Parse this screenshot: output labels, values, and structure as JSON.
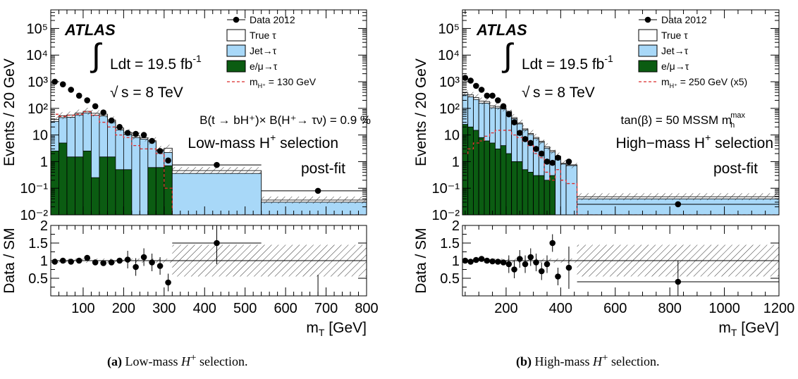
{
  "style": {
    "jet_color": "#a8d8f8",
    "lep_color": "#0b5c12",
    "signal_color": "#d92b2b",
    "data_color": "#000000"
  },
  "chart_data": [
    {
      "type": "histogram",
      "panel": "a",
      "caption_label": "(a)",
      "caption_text": "Low-mass",
      "caption_particle": "H",
      "caption_sup": "+",
      "caption_tail": "selection.",
      "experiment": "ATLAS",
      "lumi_label": "Ldt = 19.5 fb",
      "lumi_sup": "-1",
      "energy_label": "s = 8 TeV",
      "br_label": "B(t → bH⁺)× B(H⁺→ τν) = 0.9 %",
      "selection_label": "Low-mass H",
      "selection_sup": "+",
      "selection_tail": "selection",
      "fit_label": "post-fit",
      "ylabel": "Events / 20 GeV",
      "ratio_ylabel": "Data / SM",
      "xlabel": "m",
      "xlabel_sub": "T",
      "xlabel_unit": "[GeV]",
      "xlim": [
        20,
        800
      ],
      "ylim_log": [
        0.01,
        500000
      ],
      "ratio_ylim": [
        0,
        2
      ],
      "x_ticks": [
        "100",
        "200",
        "300",
        "400",
        "500",
        "600",
        "700",
        "800"
      ],
      "y_ticks": [
        "10⁻²",
        "10⁻¹",
        "1",
        "10",
        "10²",
        "10³",
        "10⁴",
        "10⁵"
      ],
      "ratio_ticks": [
        "0.5",
        "1",
        "1.5",
        "2"
      ],
      "legend": [
        {
          "kind": "data",
          "label": "Data 2012"
        },
        {
          "kind": "true",
          "label": "True τ"
        },
        {
          "kind": "jet",
          "label": "Jet→τ"
        },
        {
          "kind": "lep",
          "label": "e/μ→τ"
        },
        {
          "kind": "signal",
          "label": "m",
          "sub": "H⁺",
          "tail": " = 130 GeV"
        }
      ],
      "bin_edges": [
        20,
        40,
        60,
        80,
        100,
        120,
        140,
        160,
        180,
        200,
        220,
        240,
        260,
        280,
        300,
        320,
        540,
        800
      ],
      "series": [
        {
          "name": "e/μ→τ",
          "values": [
            2.5,
            5,
            1.5,
            1.5,
            2.5,
            0.25,
            1.5,
            1.5,
            0.5,
            0.5,
            0.01,
            0.01,
            0.6,
            0.6,
            0.7,
            0.01,
            0.01
          ]
        },
        {
          "name": "Jet→τ",
          "values": [
            30,
            40,
            45,
            55,
            65,
            55,
            50,
            30,
            15,
            10,
            8,
            7,
            5,
            2,
            1.5,
            0.35,
            0.02
          ]
        },
        {
          "name": "True τ",
          "values": [
            6,
            8,
            10,
            10,
            10,
            10,
            9,
            5,
            3,
            2,
            1.3,
            0.8,
            0.5,
            0.25,
            1.0,
            0.1,
            0.006
          ]
        },
        {
          "name": "m_H+ = 130 GeV",
          "values": [
            60,
            50,
            55,
            60,
            75,
            55,
            30,
            20,
            10,
            8,
            4,
            3,
            3,
            2,
            0.1,
            0.01,
            0.01
          ]
        }
      ],
      "data": {
        "x": [
          30,
          50,
          70,
          90,
          110,
          130,
          150,
          170,
          190,
          210,
          230,
          250,
          270,
          290,
          310,
          430,
          680
        ],
        "y": [
          1000,
          800,
          500,
          300,
          200,
          120,
          70,
          35,
          20,
          12,
          11,
          10,
          6,
          2.5,
          1.1,
          0.75,
          0.08
        ],
        "ratio": [
          0.97,
          1.0,
          0.97,
          1.0,
          1.08,
          0.95,
          0.93,
          0.95,
          1.0,
          1.03,
          0.82,
          1.1,
          0.95,
          0.85,
          0.38,
          1.5,
          0.0
        ]
      }
    },
    {
      "type": "histogram",
      "panel": "b",
      "caption_label": "(b)",
      "caption_text": "High-mass",
      "caption_particle": "H",
      "caption_sup": "+",
      "caption_tail": "selection.",
      "experiment": "ATLAS",
      "lumi_label": "Ldt = 19.5 fb",
      "lumi_sup": "-1",
      "energy_label": "s = 8 TeV",
      "br_label": "tan(β) = 50 MSSM m",
      "br_sup": "max",
      "br_sub": "h",
      "selection_label": "High−mass H",
      "selection_sup": "+",
      "selection_tail": "selection",
      "fit_label": "post-fit",
      "ylabel": "Events / 20 GeV",
      "ratio_ylabel": "Data / SM",
      "xlabel": "m",
      "xlabel_sub": "T",
      "xlabel_unit": "[GeV]",
      "xlim": [
        40,
        1200
      ],
      "ylim_log": [
        0.01,
        500000
      ],
      "ratio_ylim": [
        0,
        2
      ],
      "x_ticks": [
        "200",
        "400",
        "600",
        "800",
        "1000",
        "1200"
      ],
      "y_ticks": [
        "10⁻²",
        "10⁻¹",
        "1",
        "10",
        "10²",
        "10³",
        "10⁴",
        "10⁵"
      ],
      "ratio_ticks": [
        "0.5",
        "1",
        "1.5",
        "2"
      ],
      "legend": [
        {
          "kind": "data",
          "label": "Data 2012"
        },
        {
          "kind": "true",
          "label": "True τ"
        },
        {
          "kind": "jet",
          "label": "Jet→τ"
        },
        {
          "kind": "lep",
          "label": "e/μ→τ"
        },
        {
          "kind": "signal",
          "label": "m",
          "sub": "H⁺",
          "tail": " = 250 GeV (x5)"
        }
      ],
      "bin_edges": [
        40,
        60,
        80,
        100,
        120,
        140,
        160,
        180,
        200,
        220,
        240,
        260,
        280,
        300,
        320,
        340,
        360,
        380,
        400,
        420,
        460,
        1200
      ],
      "series": [
        {
          "name": "e/μ→τ",
          "values": [
            25,
            20,
            15,
            8,
            6,
            5,
            3,
            4,
            2,
            1,
            1,
            0.5,
            0.4,
            0.3,
            0.3,
            0.2,
            0.3,
            0.01,
            0.01,
            0.01,
            0.01
          ]
        },
        {
          "name": "Jet→τ",
          "values": [
            300,
            250,
            200,
            150,
            150,
            100,
            100,
            90,
            70,
            40,
            25,
            15,
            10,
            7,
            5,
            3,
            2,
            1.5,
            0.8,
            0.7,
            0.03
          ]
        },
        {
          "name": "True τ",
          "values": [
            60,
            50,
            40,
            30,
            25,
            20,
            15,
            10,
            6,
            4,
            2,
            1.5,
            1,
            0.8,
            0.5,
            0.4,
            0.3,
            0.1,
            0.05,
            0.05,
            0.008
          ]
        },
        {
          "name": "m_H+ = 250 GeV (x5)",
          "values": [
            2,
            3,
            5,
            6,
            9,
            12,
            15,
            15,
            15,
            10,
            8,
            6,
            4,
            2,
            1.4,
            0.4,
            0.2,
            0.5,
            0.2,
            0.15,
            0.01
          ]
        }
      ],
      "data": {
        "x": [
          50,
          70,
          90,
          110,
          130,
          150,
          170,
          190,
          210,
          230,
          250,
          270,
          290,
          310,
          330,
          350,
          370,
          390,
          430,
          830
        ],
        "y": [
          1400,
          1100,
          700,
          500,
          300,
          300,
          200,
          120,
          60,
          30,
          12,
          7,
          5,
          3,
          2,
          1,
          0.9,
          1.4,
          1.0,
          0.025
        ],
        "ratio": [
          1.0,
          0.97,
          1.02,
          1.05,
          1.0,
          0.98,
          0.97,
          0.95,
          0.9,
          0.75,
          1.05,
          0.9,
          1.1,
          0.95,
          0.7,
          0.9,
          1.5,
          0.55,
          0.8,
          0.4
        ]
      }
    }
  ]
}
